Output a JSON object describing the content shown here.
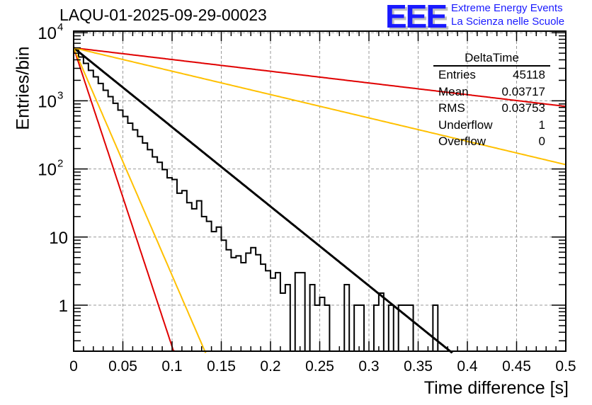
{
  "title": "LAQU-01-2025-09-29-00023",
  "logo": {
    "mark": "EEE",
    "line1": "Extreme Energy Events",
    "line2": "La Scienza nelle Scuole",
    "color": "#1a1aff"
  },
  "stats_box": {
    "name": "DeltaTime",
    "rows": [
      {
        "label": "Entries",
        "value": "45118"
      },
      {
        "label": "Mean",
        "value": "0.03717"
      },
      {
        "label": "RMS",
        "value": "0.03753"
      },
      {
        "label": "Underflow",
        "value": "1"
      },
      {
        "label": "Overflow",
        "value": "0"
      }
    ]
  },
  "chart_data": {
    "type": "histogram-line",
    "title": "LAQU-01-2025-09-29-00023",
    "xlabel": "Time difference [s]",
    "ylabel": "Entries/bin",
    "xlim": [
      0,
      0.5
    ],
    "ylim": [
      0.2,
      10000
    ],
    "yscale": "log",
    "grid": true,
    "xticks": [
      "0",
      "0.05",
      "0.1",
      "0.15",
      "0.2",
      "0.25",
      "0.3",
      "0.35",
      "0.4",
      "0.45",
      "0.5"
    ],
    "xtick_values": [
      0,
      0.05,
      0.1,
      0.15,
      0.2,
      0.25,
      0.3,
      0.35,
      0.4,
      0.45,
      0.5
    ],
    "yticks": [
      {
        "value": 10000,
        "base": "10",
        "exp": "4"
      },
      {
        "value": 1000,
        "base": "10",
        "exp": "3"
      },
      {
        "value": 100,
        "base": "10",
        "exp": "2"
      },
      {
        "value": 10,
        "base": "10",
        "exp": ""
      },
      {
        "value": 1,
        "base": "1",
        "exp": ""
      }
    ],
    "bin_width": 0.005,
    "histogram": [
      5600,
      4400,
      3550,
      2800,
      2250,
      1800,
      1430,
      1150,
      920,
      730,
      590,
      470,
      375,
      300,
      240,
      192,
      150,
      125,
      98,
      74,
      70,
      44,
      48,
      32,
      26,
      34,
      20,
      17,
      12,
      14,
      9,
      6.5,
      5,
      5.3,
      4.2,
      5.8,
      7,
      5.5,
      4,
      3.2,
      2.5,
      3,
      1.5,
      2,
      0,
      3,
      3,
      0,
      2,
      1,
      1.3,
      1,
      0,
      0,
      0,
      2,
      0,
      1,
      1,
      0,
      0,
      1,
      1.5,
      0,
      1,
      0,
      1,
      1,
      1,
      0,
      0,
      0,
      0,
      1,
      0,
      0,
      0,
      0,
      0,
      0,
      0,
      0,
      0,
      0,
      0,
      0,
      0,
      0,
      0,
      0,
      0,
      0,
      0,
      0,
      0,
      0,
      0,
      0,
      0,
      0
    ],
    "series": [
      {
        "name": "fit",
        "color": "#000000",
        "A": 6000,
        "tau": 0.0373
      },
      {
        "name": "red-slow",
        "color": "#e00000",
        "A": 6000,
        "tau": 0.2525
      },
      {
        "name": "yellow-slow",
        "color": "#ffc000",
        "A": 6000,
        "tau": 0.1266
      },
      {
        "name": "red-fast",
        "color": "#e00000",
        "A": 6000,
        "tau": 0.0099
      },
      {
        "name": "yellow-fast",
        "color": "#ffc000",
        "A": 6000,
        "tau": 0.013
      }
    ]
  }
}
